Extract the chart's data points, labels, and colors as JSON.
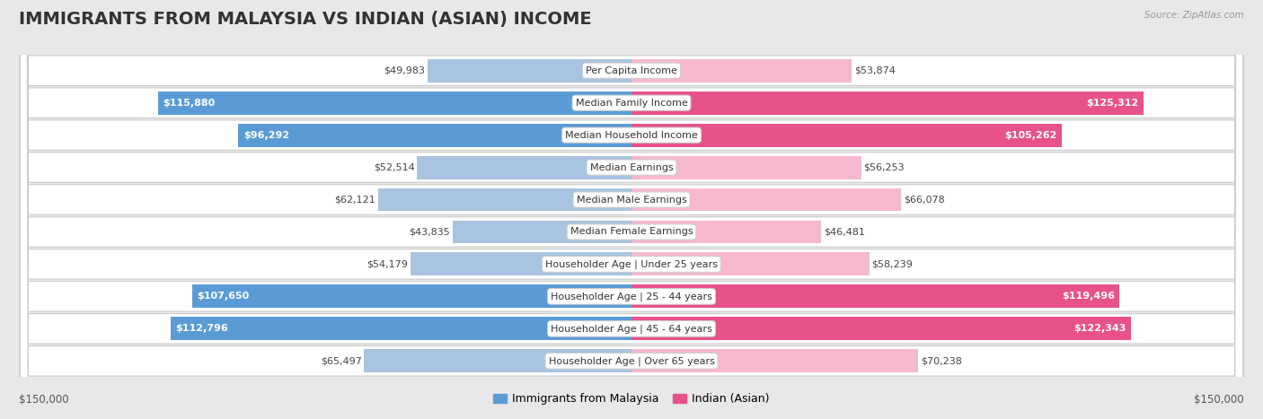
{
  "title": "IMMIGRANTS FROM MALAYSIA VS INDIAN (ASIAN) INCOME",
  "source": "Source: ZipAtlas.com",
  "categories": [
    "Per Capita Income",
    "Median Family Income",
    "Median Household Income",
    "Median Earnings",
    "Median Male Earnings",
    "Median Female Earnings",
    "Householder Age | Under 25 years",
    "Householder Age | 25 - 44 years",
    "Householder Age | 45 - 64 years",
    "Householder Age | Over 65 years"
  ],
  "malaysia_values": [
    49983,
    115880,
    96292,
    52514,
    62121,
    43835,
    54179,
    107650,
    112796,
    65497
  ],
  "indian_values": [
    53874,
    125312,
    105262,
    56253,
    66078,
    46481,
    58239,
    119496,
    122343,
    70238
  ],
  "malaysia_color_light": "#a8c4e0",
  "malaysia_color_dark": "#5b9bd5",
  "indian_color_light": "#f5b8cf",
  "indian_color_dark": "#e8528a",
  "max_value": 150000,
  "legend_malaysia": "Immigrants from Malaysia",
  "legend_indian": "Indian (Asian)",
  "background_color": "#e8e8e8",
  "bar_height": 0.72,
  "label_fontsize": 8.0,
  "value_fontsize": 8.0,
  "title_fontsize": 14,
  "mal_dark_threshold": 90000,
  "ind_dark_threshold": 90000
}
